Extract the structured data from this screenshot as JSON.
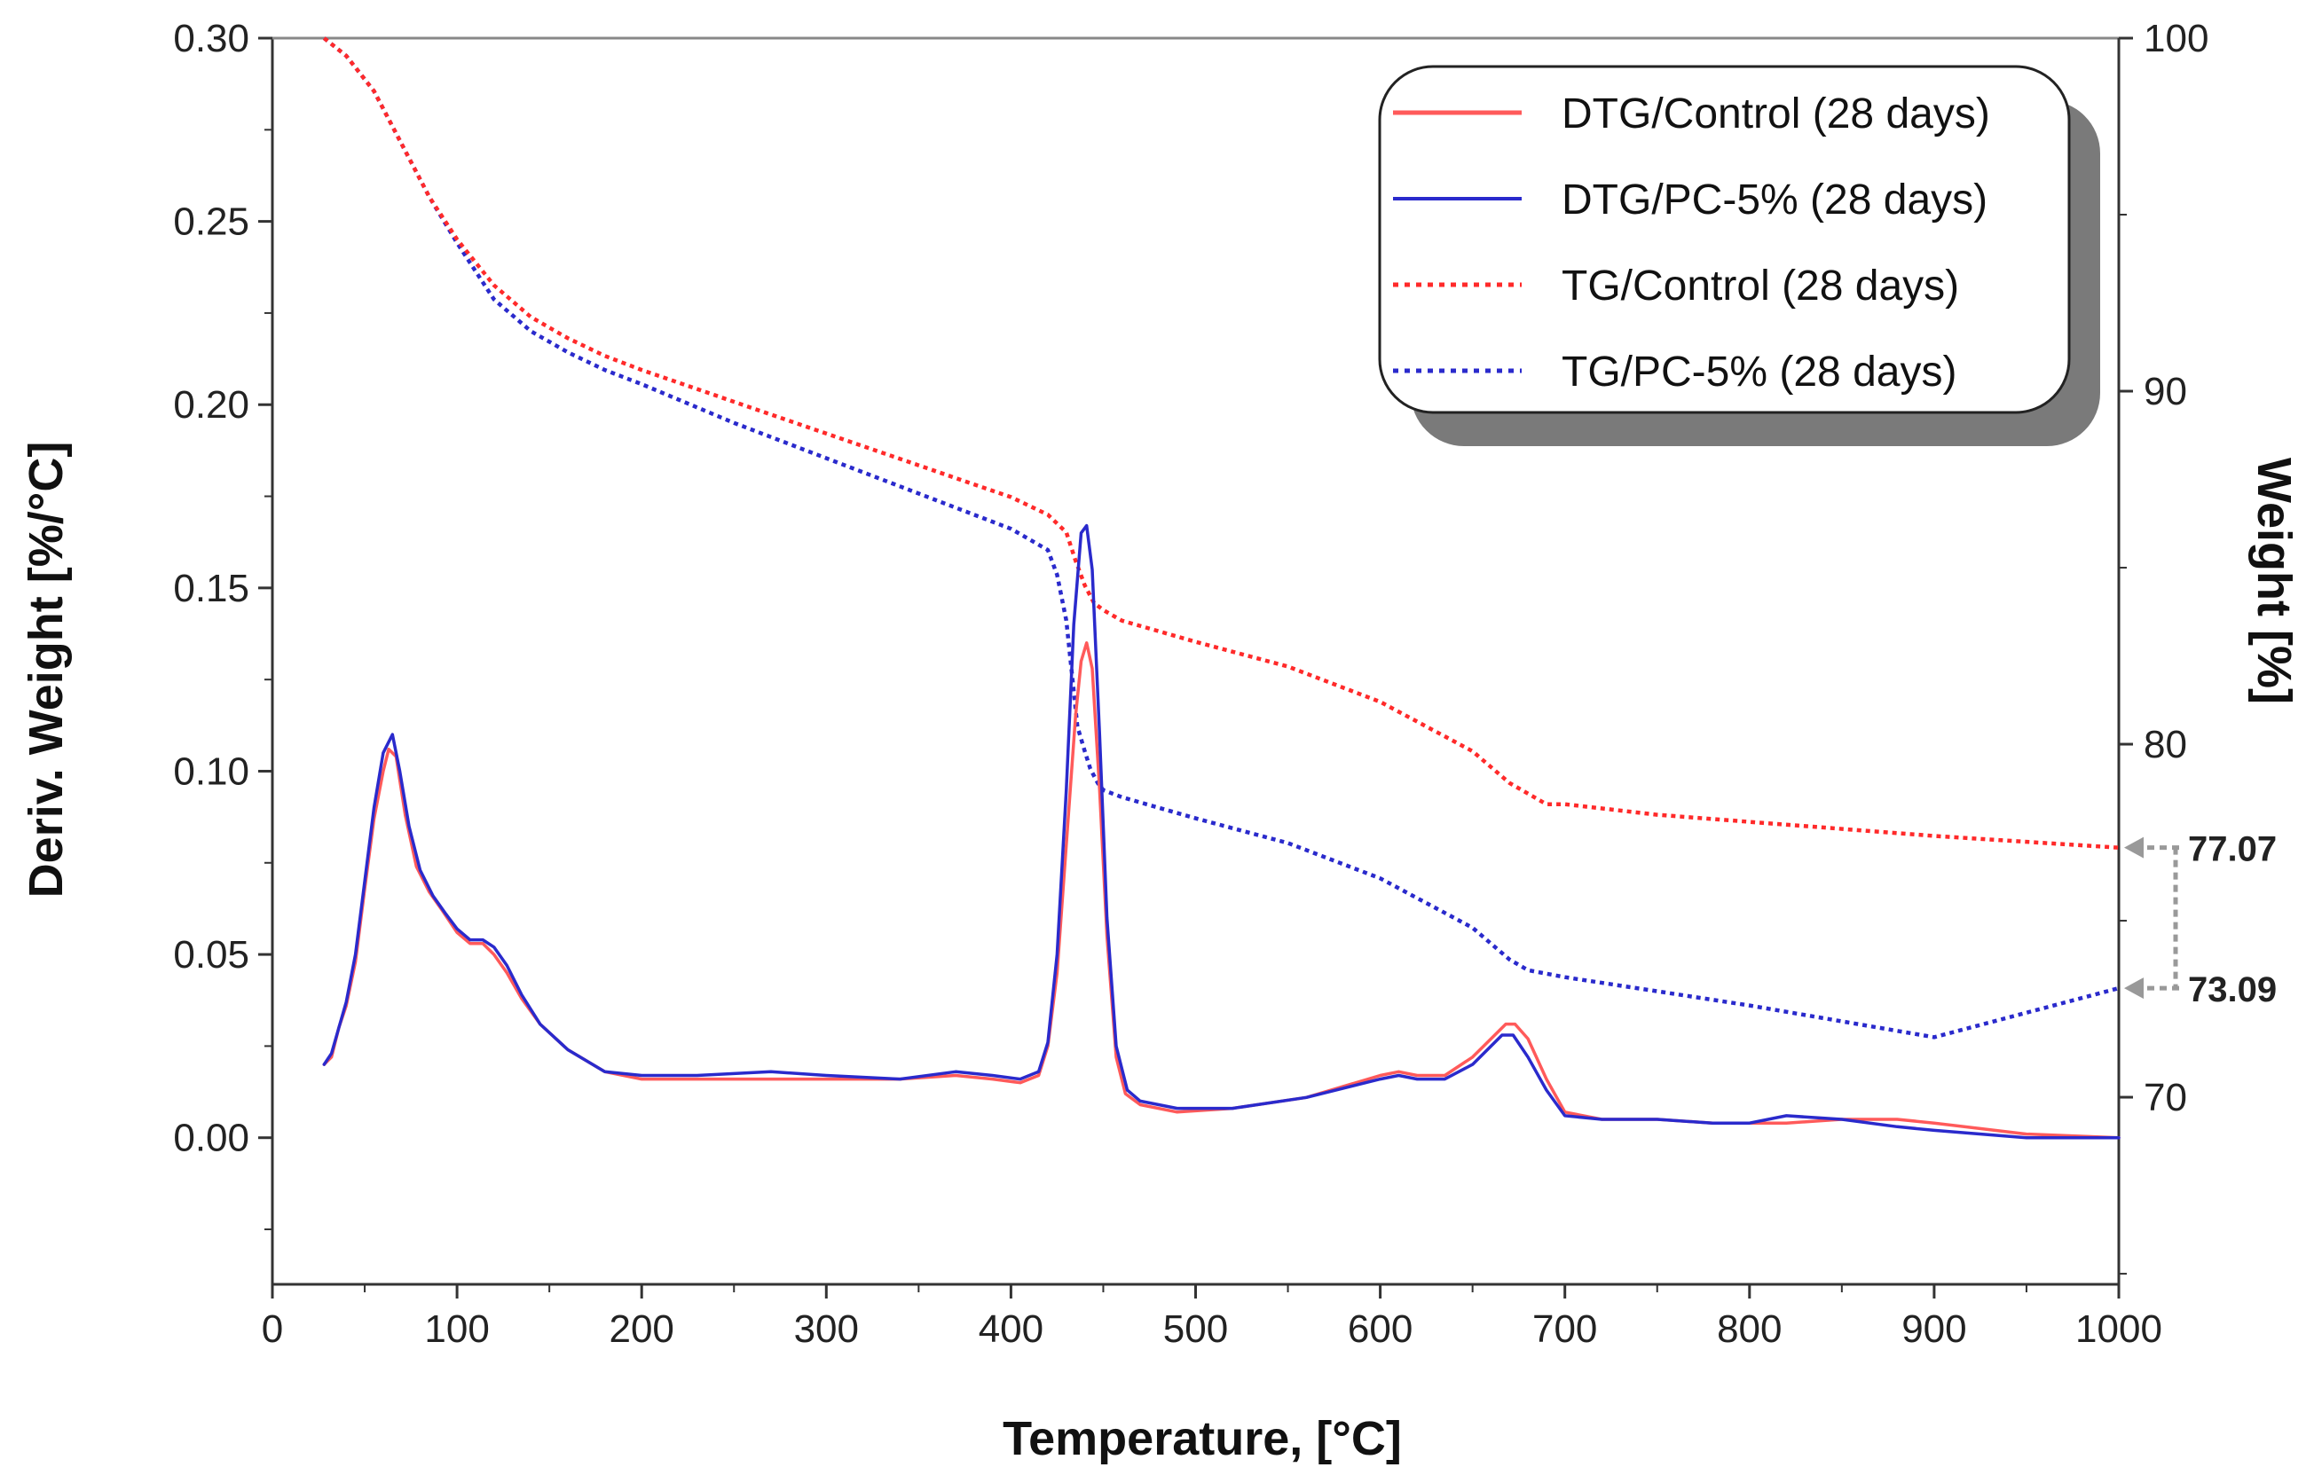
{
  "chart_data": {
    "type": "line",
    "title": "",
    "xlabel": "Temperature, [°C]",
    "ylabel_left": "Deriv. Weight [%/°C]",
    "ylabel_right": "Weight [%]",
    "xlim": [
      0,
      1000
    ],
    "ylim_left": [
      -0.04,
      0.3
    ],
    "ylim_right": [
      64.7,
      100
    ],
    "x_ticks": [
      0,
      100,
      200,
      300,
      400,
      500,
      600,
      700,
      800,
      900,
      1000
    ],
    "x_tick_labels": [
      "0",
      "100",
      "200",
      "300",
      "400",
      "500",
      "600",
      "700",
      "800",
      "900",
      "1000"
    ],
    "y_left_ticks": [
      0.0,
      0.05,
      0.1,
      0.15,
      0.2,
      0.25,
      0.3
    ],
    "y_left_tick_labels": [
      "0.00",
      "0.05",
      "0.10",
      "0.15",
      "0.20",
      "0.25",
      "0.30"
    ],
    "y_right_ticks": [
      70,
      80,
      90,
      100
    ],
    "y_right_tick_labels": [
      "70",
      "80",
      "90",
      "100"
    ],
    "grid": false,
    "legend_position": "top-right",
    "series": [
      {
        "name": "DTG/Control (28 days)",
        "axis": "left",
        "color": "#ff5a5a",
        "style": "solid",
        "x": [
          28,
          32,
          36,
          40,
          45,
          50,
          55,
          60,
          63,
          67,
          72,
          78,
          85,
          92,
          100,
          107,
          114,
          120,
          127,
          135,
          145,
          160,
          180,
          200,
          230,
          260,
          300,
          340,
          370,
          390,
          405,
          415,
          420,
          425,
          430,
          435,
          438,
          441,
          444,
          448,
          452,
          457,
          462,
          470,
          490,
          520,
          560,
          600,
          610,
          620,
          635,
          650,
          660,
          668,
          673,
          680,
          690,
          700,
          720,
          750,
          780,
          800,
          820,
          850,
          880,
          900,
          950,
          1000
        ],
        "values": [
          0.02,
          0.022,
          0.03,
          0.036,
          0.048,
          0.068,
          0.087,
          0.1,
          0.106,
          0.104,
          0.088,
          0.074,
          0.067,
          0.062,
          0.056,
          0.053,
          0.053,
          0.05,
          0.045,
          0.038,
          0.031,
          0.024,
          0.018,
          0.016,
          0.016,
          0.016,
          0.016,
          0.016,
          0.017,
          0.016,
          0.015,
          0.017,
          0.025,
          0.045,
          0.08,
          0.115,
          0.13,
          0.135,
          0.128,
          0.095,
          0.055,
          0.022,
          0.012,
          0.009,
          0.007,
          0.008,
          0.011,
          0.017,
          0.018,
          0.017,
          0.017,
          0.022,
          0.027,
          0.031,
          0.031,
          0.027,
          0.016,
          0.007,
          0.005,
          0.005,
          0.004,
          0.004,
          0.004,
          0.005,
          0.005,
          0.004,
          0.001,
          0.0
        ]
      },
      {
        "name": "DTG/PC-5% (28 days)",
        "axis": "left",
        "color": "#2a2acc",
        "style": "solid",
        "x": [
          28,
          32,
          36,
          40,
          45,
          50,
          55,
          60,
          65,
          69,
          74,
          80,
          87,
          94,
          100,
          107,
          114,
          120,
          127,
          135,
          145,
          160,
          180,
          200,
          230,
          270,
          300,
          340,
          370,
          390,
          405,
          415,
          420,
          425,
          430,
          434,
          438,
          441,
          444,
          448,
          452,
          457,
          463,
          470,
          490,
          520,
          560,
          600,
          610,
          620,
          635,
          650,
          660,
          666,
          672,
          680,
          690,
          700,
          720,
          750,
          780,
          800,
          820,
          850,
          880,
          900,
          950,
          1000
        ],
        "values": [
          0.02,
          0.023,
          0.03,
          0.037,
          0.05,
          0.07,
          0.09,
          0.105,
          0.11,
          0.1,
          0.085,
          0.073,
          0.066,
          0.061,
          0.057,
          0.054,
          0.054,
          0.052,
          0.047,
          0.039,
          0.031,
          0.024,
          0.018,
          0.017,
          0.017,
          0.018,
          0.017,
          0.016,
          0.018,
          0.017,
          0.016,
          0.018,
          0.026,
          0.05,
          0.095,
          0.14,
          0.165,
          0.167,
          0.155,
          0.11,
          0.06,
          0.025,
          0.013,
          0.01,
          0.008,
          0.008,
          0.011,
          0.016,
          0.017,
          0.016,
          0.016,
          0.02,
          0.025,
          0.028,
          0.028,
          0.022,
          0.013,
          0.006,
          0.005,
          0.005,
          0.004,
          0.004,
          0.006,
          0.005,
          0.003,
          0.002,
          0.0,
          0.0
        ]
      },
      {
        "name": "TG/Control (28 days)",
        "axis": "right",
        "color": "#ff2a2a",
        "style": "dotted",
        "x": [
          28,
          40,
          55,
          70,
          85,
          100,
          120,
          140,
          160,
          180,
          200,
          250,
          300,
          350,
          400,
          420,
          430,
          435,
          440,
          445,
          450,
          460,
          500,
          550,
          600,
          650,
          670,
          690,
          700,
          750,
          800,
          900,
          1000
        ],
        "values": [
          100.0,
          99.5,
          98.5,
          97.0,
          95.5,
          94.3,
          93.0,
          92.1,
          91.5,
          91.0,
          90.6,
          89.7,
          88.8,
          87.9,
          87.0,
          86.5,
          86.0,
          85.2,
          84.5,
          84.0,
          83.8,
          83.5,
          82.9,
          82.2,
          81.2,
          79.8,
          78.9,
          78.3,
          78.3,
          78.0,
          77.8,
          77.4,
          77.07
        ]
      },
      {
        "name": "TG/PC-5% (28 days)",
        "axis": "right",
        "color": "#2a2acc",
        "style": "dotted",
        "x": [
          28,
          40,
          55,
          70,
          85,
          100,
          120,
          140,
          160,
          180,
          200,
          250,
          300,
          350,
          400,
          420,
          425,
          430,
          433,
          436,
          440,
          443,
          447,
          450,
          460,
          500,
          550,
          600,
          650,
          670,
          680,
          700,
          750,
          800,
          900,
          1000
        ],
        "values": [
          100.0,
          99.5,
          98.5,
          97.0,
          95.5,
          94.2,
          92.6,
          91.7,
          91.1,
          90.6,
          90.2,
          89.1,
          88.1,
          87.1,
          86.1,
          85.5,
          84.8,
          83.5,
          82.0,
          80.5,
          79.8,
          79.3,
          78.9,
          78.7,
          78.5,
          77.9,
          77.2,
          76.2,
          74.8,
          73.9,
          73.6,
          73.4,
          73.0,
          72.6,
          71.7,
          73.09
        ]
      }
    ],
    "annotations": [
      {
        "label": "77.07",
        "axis": "right",
        "value": 77.07
      },
      {
        "label": "73.09",
        "axis": "right",
        "value": 73.09
      }
    ]
  }
}
